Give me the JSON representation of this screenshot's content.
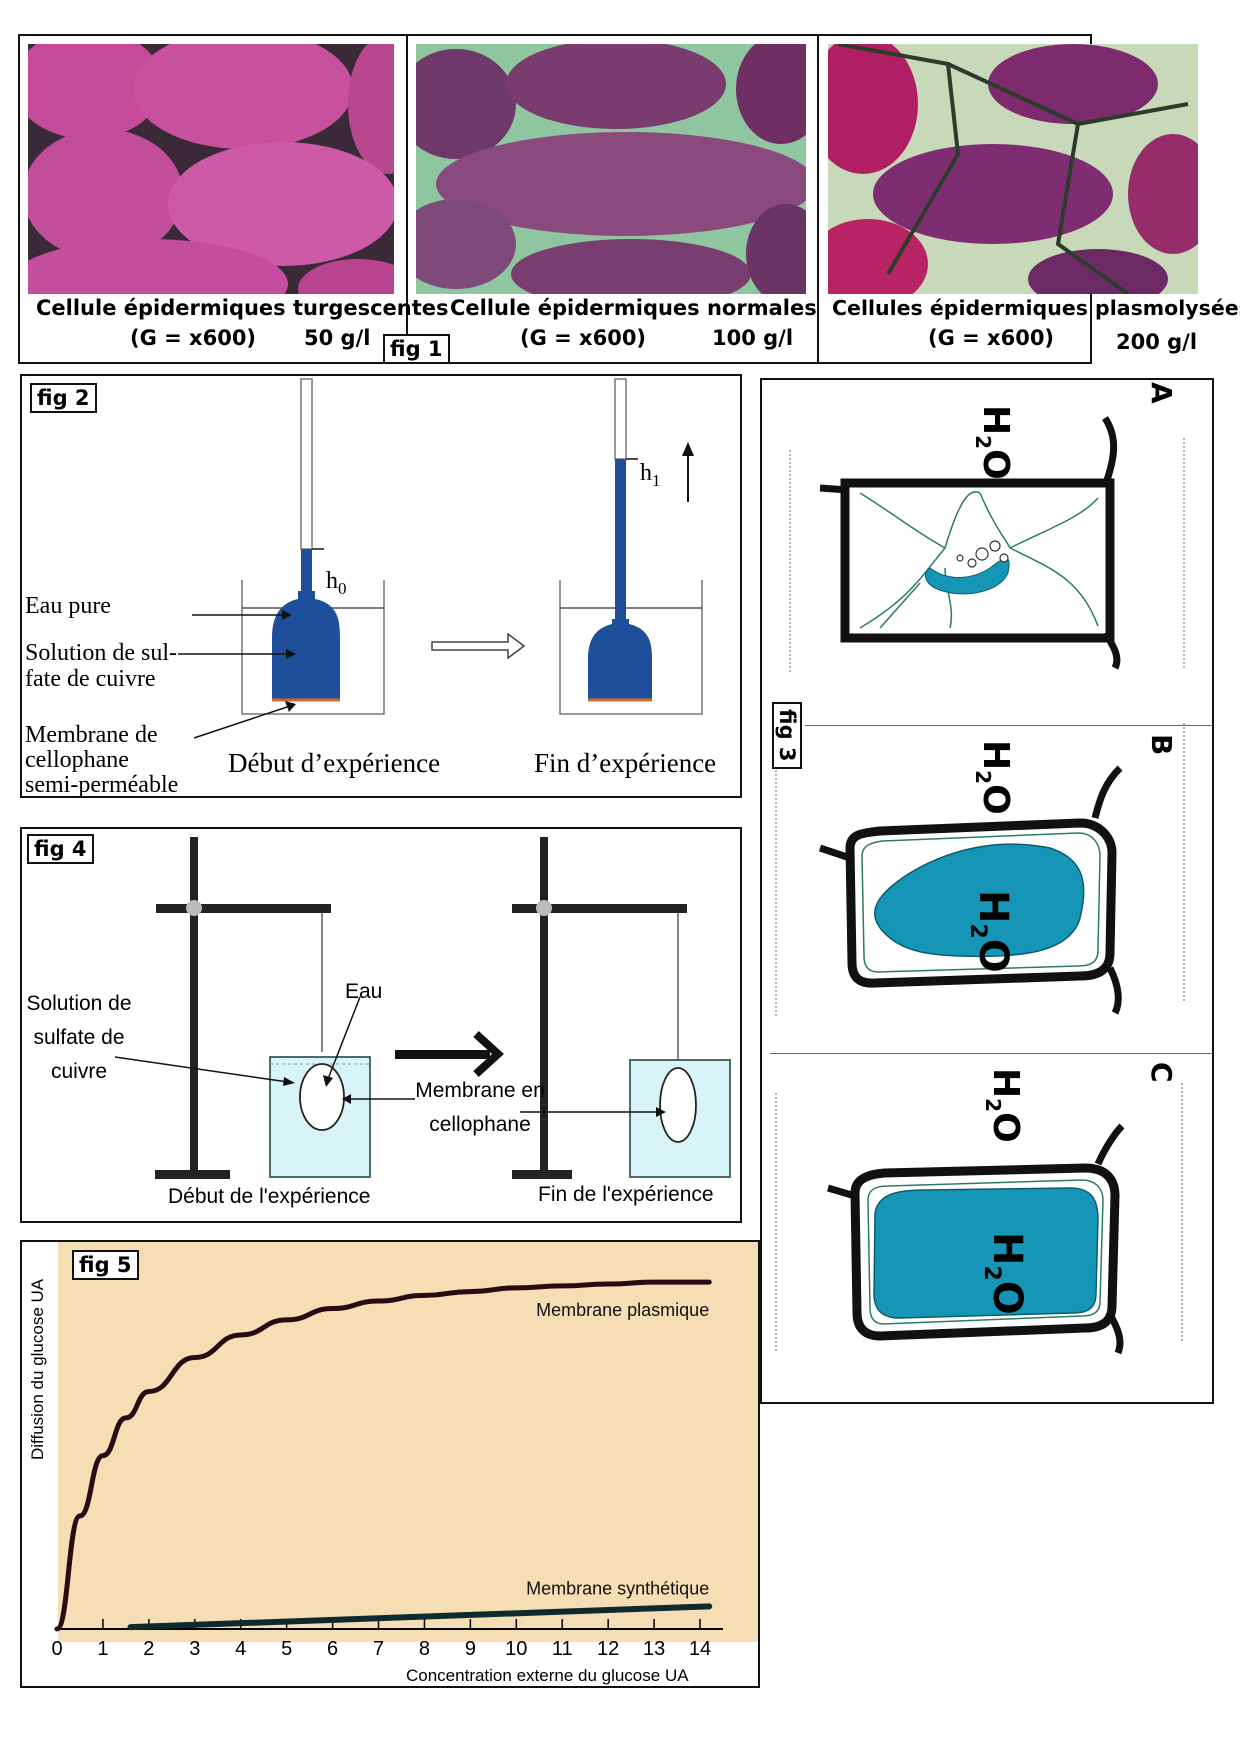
{
  "fig1": {
    "tag": "fig 1",
    "panels": [
      {
        "title": "Cellule épidermiques turgescentes",
        "magnification": "(G = x600)",
        "concentration": "50 g/l"
      },
      {
        "title": "Cellule épidermiques normales",
        "magnification": "(G = x600)",
        "concentration": "100 g/l"
      },
      {
        "title": "Cellules épidermiques plasmolysées",
        "magnification": "(G = x600)",
        "concentration": "200 g/l"
      }
    ]
  },
  "fig2": {
    "tag": "fig 2",
    "labels": {
      "water": "Eau pure",
      "solution_line1": "Solution de sul-",
      "solution_line2": "fate de cuivre",
      "membrane_line1": "Membrane de",
      "membrane_line2": "cellophane",
      "membrane_line3": "semi-perméable",
      "start": "Début d’expérience",
      "end": "Fin d’expérience",
      "h0": "h",
      "h0_sub": "0",
      "h1": "h",
      "h1_sub": "1"
    }
  },
  "fig3": {
    "tag": "fig 3",
    "panels": [
      {
        "letter": "A",
        "water": "H",
        "water_sub": "2",
        "water_o": "O"
      },
      {
        "letter": "B",
        "water": "H",
        "water_sub": "2",
        "water_o": "O"
      },
      {
        "letter": "C",
        "water": "H",
        "water_sub": "2",
        "water_o": "O"
      }
    ]
  },
  "fig4": {
    "tag": "fig 4",
    "labels": {
      "solution_line1": "Solution de",
      "solution_line2": "sulfate de",
      "solution_line3": "cuivre",
      "water": "Eau",
      "membrane_line1": "Membrane en",
      "membrane_line2": "cellophane",
      "start": "Début de l'expérience",
      "end": "Fin de l'expérience"
    }
  },
  "fig5": {
    "tag": "fig 5"
  },
  "chart_data": {
    "type": "line",
    "title": "",
    "xlabel": "Concentration externe du glucose UA",
    "ylabel": "Diffusion du glucose UA",
    "xlim": [
      0,
      14.5
    ],
    "ylim": [
      0,
      10
    ],
    "x_ticks": [
      "0",
      "1",
      "2",
      "3",
      "4",
      "5",
      "6",
      "7",
      "8",
      "9",
      "10",
      "11",
      "12",
      "13",
      "14"
    ],
    "grid": false,
    "background": "#f5deb3",
    "series": [
      {
        "name": "Membrane plasmique",
        "color": "#2a0a14",
        "x": [
          0,
          0.5,
          1,
          1.5,
          2,
          3,
          4,
          5,
          6,
          7,
          8,
          9,
          10,
          11,
          12,
          13,
          14.2
        ],
        "y": [
          0,
          3.0,
          4.6,
          5.6,
          6.3,
          7.2,
          7.8,
          8.2,
          8.5,
          8.7,
          8.85,
          8.95,
          9.05,
          9.1,
          9.15,
          9.2,
          9.2
        ]
      },
      {
        "name": "Membrane synthétique",
        "color": "#0e2a2e",
        "x": [
          1.6,
          14.2
        ],
        "y": [
          0.05,
          0.6
        ]
      }
    ]
  },
  "colors": {
    "copper_solution": "#1f4e9a",
    "cell_blue": "#1596b6",
    "beaker_water": "#d9f4f6"
  }
}
